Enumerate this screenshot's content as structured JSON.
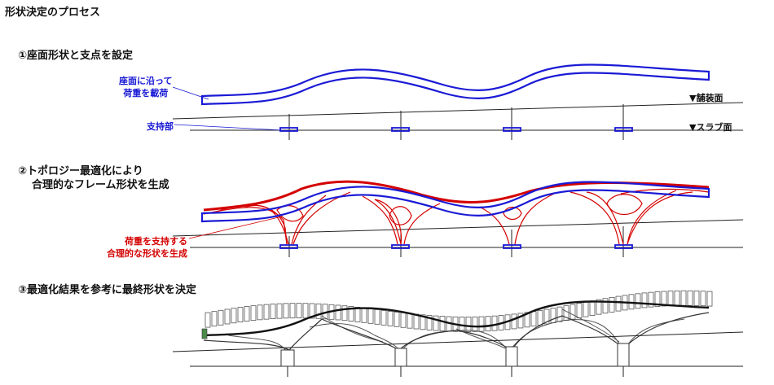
{
  "title": "形状決定のプロセス",
  "steps": [
    {
      "num": "①",
      "lines": [
        "座面形状と支点を設定"
      ]
    },
    {
      "num": "②",
      "lines": [
        "トポロジー最適化により",
        "合理的なフレーム形状を生成"
      ]
    },
    {
      "num": "③",
      "lines": [
        "最適化結果を参考に最終形状を決定"
      ]
    }
  ],
  "annotations": {
    "seat_load": [
      "座面に沿って",
      "荷重を載荷"
    ],
    "supports": "支持部",
    "rational": [
      "荷重を支持する",
      "合理的な形状を生成"
    ]
  },
  "levels": {
    "paving": "▼舗装面",
    "slab": "▼スラブ面"
  },
  "colors": {
    "seat": "#1a1ad6",
    "optimized": "#d40000",
    "line": "#222222",
    "final": "#555555"
  }
}
